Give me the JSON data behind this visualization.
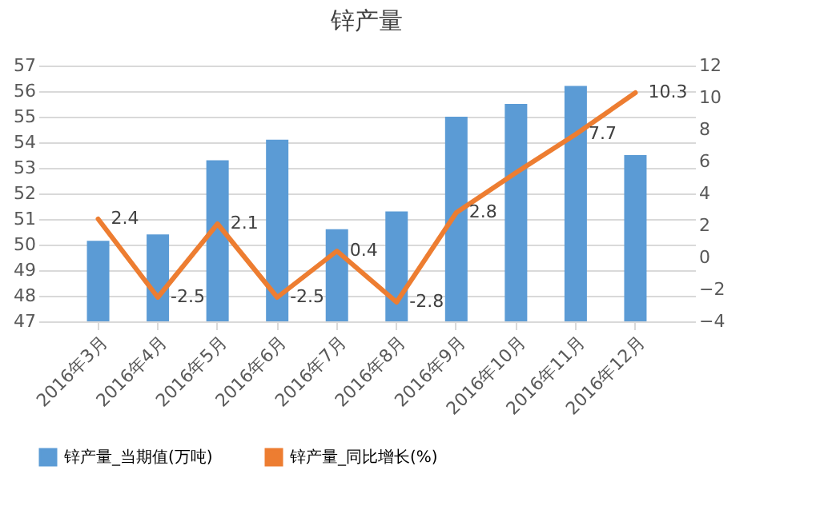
{
  "chart_data": {
    "type": "bar",
    "title": "锌产量",
    "categories": [
      "2016年3月",
      "2016年4月",
      "2016年5月",
      "2016年6月",
      "2016年7月",
      "2016年8月",
      "2016年9月",
      "2016年10月",
      "2016年11月",
      "2016年12月"
    ],
    "series": [
      {
        "name": "锌产量_当期值(万吨)",
        "type": "bar",
        "color": "#5b9bd5",
        "values": [
          50.15,
          50.4,
          53.3,
          54.1,
          50.6,
          51.3,
          55.0,
          55.5,
          56.2,
          53.5
        ]
      },
      {
        "name": "锌产量_同比增长(%)",
        "type": "line",
        "axis": "y2",
        "color": "#ed7d31",
        "values": [
          2.4,
          -2.5,
          2.1,
          -2.5,
          0.4,
          -2.8,
          2.8,
          5.3,
          7.7,
          10.3
        ],
        "value_labels": [
          "2.4",
          "-2.5",
          "2.1",
          "-2.5",
          "0.4",
          "-2.8",
          "2.8",
          null,
          "7.7",
          "10.3"
        ]
      }
    ],
    "ylim": [
      47,
      57
    ],
    "yticks": [
      47,
      48,
      49,
      50,
      51,
      52,
      53,
      54,
      55,
      56,
      57
    ],
    "y2lim": [
      -4,
      12
    ],
    "y2ticks": [
      -4,
      -2,
      0,
      2,
      4,
      6,
      8,
      10,
      12
    ],
    "grid": "y",
    "legend": "bottom"
  }
}
